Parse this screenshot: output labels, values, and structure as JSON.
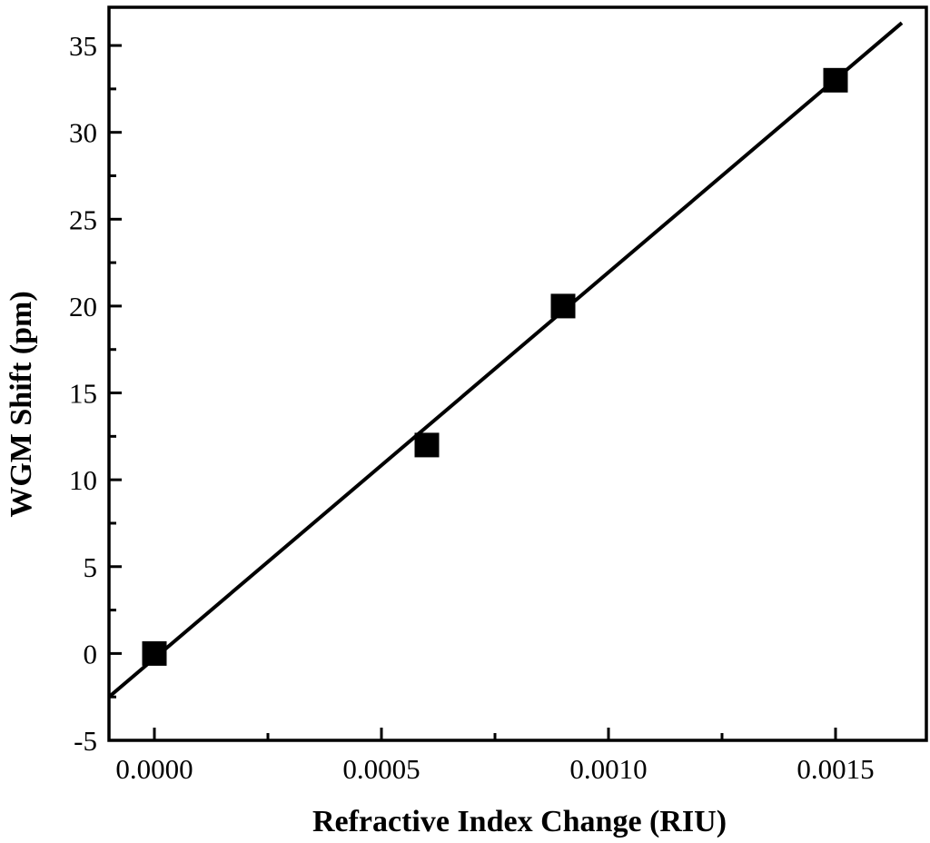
{
  "figure": {
    "background": "#ffffff"
  },
  "chart_data": {
    "type": "scatter",
    "title": "",
    "xlabel": "Refractive Index Change (RIU)",
    "ylabel": "WGM Shift (pm)",
    "points": [
      [
        0.0,
        0
      ],
      [
        0.0006,
        12
      ],
      [
        0.0009,
        20
      ],
      [
        0.0015,
        33
      ]
    ],
    "fit_line": {
      "x1": -0.0001,
      "y1": -2.5,
      "x2": 0.001646,
      "y2": 36.3
    },
    "xlim": [
      -0.0001,
      0.0017
    ],
    "ylim": [
      -5,
      37.2
    ],
    "x_ticks": {
      "major": [
        0.0,
        0.0005,
        0.001,
        0.0015
      ],
      "labels": [
        "0.0000",
        "0.0005",
        "0.0010",
        "0.0015"
      ],
      "minor": [
        0.00025,
        0.00075,
        0.00125
      ]
    },
    "y_ticks": {
      "major": [
        -5,
        0,
        5,
        10,
        15,
        20,
        25,
        30,
        35
      ],
      "labels": [
        "-5",
        "0",
        "5",
        "10",
        "15",
        "20",
        "25",
        "30",
        "35"
      ],
      "minor": [
        -2.5,
        2.5,
        7.5,
        12.5,
        17.5,
        22.5,
        27.5,
        32.5
      ],
      "minor_step": 2.5
    },
    "marker": "square",
    "grid": false,
    "legend_position": "none",
    "colors": {
      "marker": "#000000",
      "fit_line": "#000000",
      "axis": "#000000",
      "background": "#ffffff"
    }
  }
}
